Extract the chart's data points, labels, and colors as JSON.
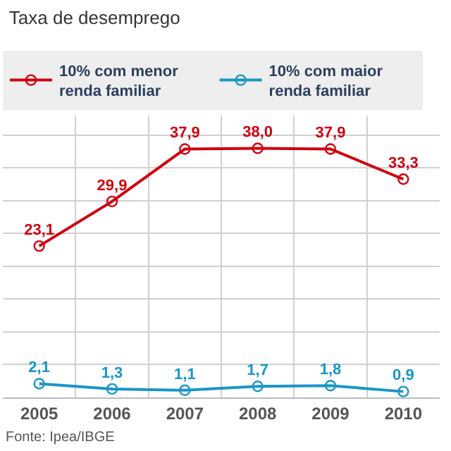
{
  "chart_data": {
    "type": "line",
    "title": "Taxa de desemprego",
    "categories": [
      "2005",
      "2006",
      "2007",
      "2008",
      "2009",
      "2010"
    ],
    "series": [
      {
        "name": "10% com menor renda familiar",
        "color": "#d0000f",
        "values": [
          23.1,
          29.9,
          37.9,
          38.0,
          37.9,
          33.3
        ],
        "value_labels": [
          "23,1",
          "29,9",
          "37,9",
          "38,0",
          "37,9",
          "33,3"
        ]
      },
      {
        "name": "10% com maior renda familiar",
        "color": "#1996c8",
        "values": [
          2.1,
          1.3,
          1.1,
          1.7,
          1.8,
          0.9
        ],
        "value_labels": [
          "2,1",
          "1,3",
          "1,1",
          "1,7",
          "1,8",
          "0,9"
        ]
      }
    ],
    "ylim": [
      0,
      43
    ],
    "yticks": [
      {
        "value": 0,
        "label": null
      },
      {
        "value": 5,
        "label": null
      },
      {
        "value": 10,
        "label": null
      },
      {
        "value": 15,
        "label": null
      },
      {
        "value": 20,
        "label": null
      },
      {
        "value": 25,
        "label": null
      },
      {
        "value": 30,
        "label": null
      },
      {
        "value": 35,
        "label": null
      },
      {
        "value": 40,
        "label": null
      }
    ],
    "tick_labels": "x",
    "grid": true,
    "legend": "top",
    "marker": "circle",
    "line_style": "solid",
    "annotations": [
      "Fonte: Ipea/IBGE"
    ]
  }
}
